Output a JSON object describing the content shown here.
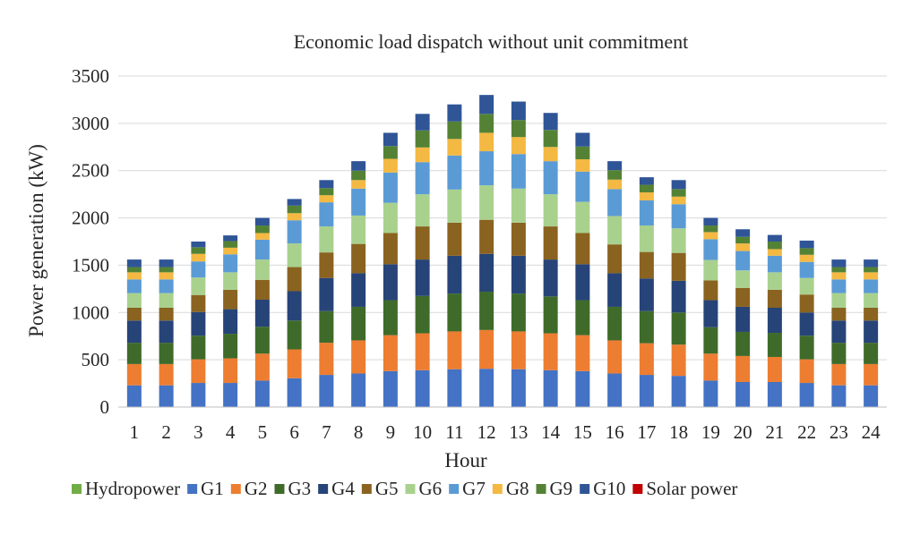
{
  "chart_data": {
    "type": "bar",
    "stacked": true,
    "title": "Economic load dispatch without unit commitment",
    "xlabel": "Hour",
    "ylabel": "Power generation (kW)",
    "ylim": [
      0,
      3500
    ],
    "yticks": [
      0,
      500,
      1000,
      1500,
      2000,
      2500,
      3000,
      3500
    ],
    "grid": true,
    "legend": "bottom",
    "categories": [
      "1",
      "2",
      "3",
      "4",
      "5",
      "6",
      "7",
      "8",
      "9",
      "10",
      "11",
      "12",
      "13",
      "14",
      "15",
      "16",
      "17",
      "18",
      "19",
      "20",
      "21",
      "22",
      "23",
      "24"
    ],
    "series": [
      {
        "name": "Hydropower",
        "color": "#70AD47",
        "values": [
          0,
          0,
          0,
          0,
          0,
          0,
          0,
          0,
          0,
          0,
          0,
          0,
          0,
          0,
          0,
          0,
          0,
          0,
          0,
          0,
          0,
          0,
          0,
          0
        ]
      },
      {
        "name": "G1",
        "color": "#4472C4",
        "values": [
          230,
          230,
          255,
          255,
          280,
          305,
          340,
          355,
          380,
          390,
          400,
          405,
          400,
          390,
          380,
          355,
          340,
          330,
          280,
          265,
          265,
          255,
          230,
          230
        ]
      },
      {
        "name": "G2",
        "color": "#ED7D31",
        "values": [
          225,
          225,
          250,
          260,
          285,
          305,
          340,
          350,
          380,
          390,
          400,
          410,
          400,
          390,
          380,
          350,
          335,
          330,
          285,
          275,
          265,
          250,
          225,
          225
        ]
      },
      {
        "name": "G3",
        "color": "#3E6B2A",
        "values": [
          225,
          225,
          250,
          260,
          285,
          305,
          335,
          355,
          370,
          395,
          400,
          405,
          400,
          390,
          370,
          355,
          340,
          340,
          280,
          255,
          255,
          250,
          225,
          225
        ]
      },
      {
        "name": "G4",
        "color": "#264478",
        "values": [
          235,
          235,
          250,
          260,
          285,
          310,
          350,
          355,
          380,
          385,
          400,
          400,
          400,
          390,
          380,
          355,
          345,
          335,
          285,
          265,
          265,
          245,
          235,
          235
        ]
      },
      {
        "name": "G5",
        "color": "#8A6320",
        "values": [
          135,
          135,
          180,
          205,
          210,
          255,
          270,
          310,
          330,
          350,
          350,
          360,
          350,
          350,
          330,
          305,
          280,
          295,
          210,
          200,
          190,
          190,
          135,
          135
        ]
      },
      {
        "name": "G6",
        "color": "#A9D18E",
        "values": [
          155,
          155,
          185,
          185,
          215,
          250,
          275,
          300,
          320,
          340,
          350,
          365,
          360,
          340,
          330,
          300,
          280,
          260,
          215,
          185,
          185,
          175,
          155,
          155
        ]
      },
      {
        "name": "G7",
        "color": "#5B9BD5",
        "values": [
          145,
          145,
          170,
          190,
          210,
          245,
          255,
          285,
          320,
          340,
          360,
          360,
          365,
          350,
          320,
          285,
          265,
          255,
          220,
          205,
          175,
          170,
          145,
          145
        ]
      },
      {
        "name": "G8",
        "color": "#F4B942",
        "values": [
          75,
          75,
          80,
          70,
          70,
          75,
          75,
          90,
          145,
          155,
          175,
          195,
          180,
          150,
          130,
          100,
          85,
          80,
          75,
          80,
          70,
          75,
          75,
          75
        ]
      },
      {
        "name": "G9",
        "color": "#548235",
        "values": [
          55,
          55,
          70,
          70,
          80,
          80,
          75,
          100,
          135,
          180,
          185,
          200,
          180,
          180,
          135,
          100,
          80,
          80,
          70,
          70,
          80,
          70,
          55,
          55
        ]
      },
      {
        "name": "G10",
        "color": "#2F5597",
        "values": [
          80,
          80,
          60,
          60,
          80,
          70,
          85,
          100,
          140,
          175,
          180,
          200,
          195,
          180,
          145,
          95,
          80,
          95,
          80,
          80,
          70,
          80,
          80,
          80
        ]
      },
      {
        "name": "Solar power",
        "color": "#C00000",
        "values": [
          0,
          0,
          0,
          0,
          0,
          0,
          0,
          0,
          0,
          0,
          0,
          0,
          0,
          0,
          0,
          0,
          0,
          0,
          0,
          0,
          0,
          0,
          0,
          0
        ]
      }
    ]
  }
}
